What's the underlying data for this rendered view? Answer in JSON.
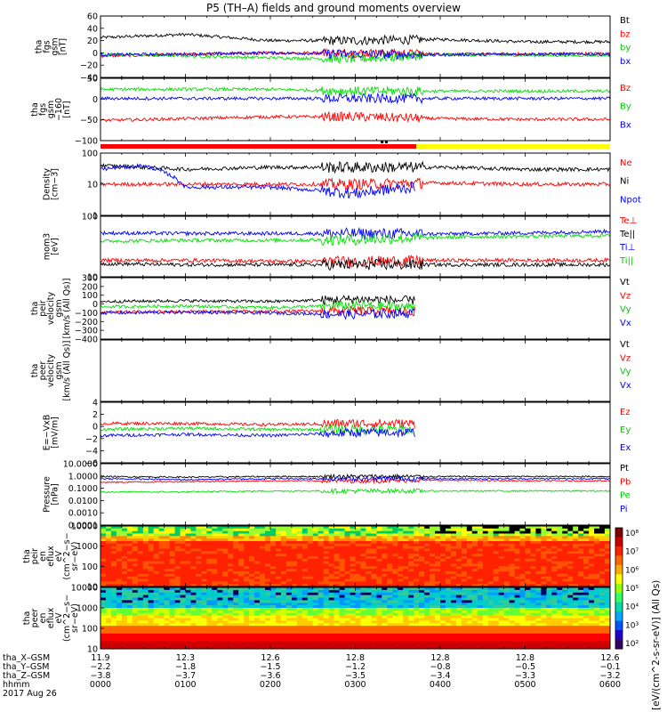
{
  "title": "P5 (TH–A) fields and ground moments overview",
  "date_label": "2017 Aug 26",
  "x_axis": {
    "row_labels": [
      "tha_X–GSM",
      "tha_Y–GSM",
      "tha_Z–GSM",
      "hhmm"
    ],
    "rows": [
      [
        "11.9",
        "12.3",
        "12.6",
        "12.8",
        "12.8",
        "12.8",
        "12.6"
      ],
      [
        "−2.2",
        "−1.8",
        "−1.5",
        "−1.2",
        "−0.8",
        "−0.5",
        "−0.1"
      ],
      [
        "−3.8",
        "−3.7",
        "−3.6",
        "−3.5",
        "−3.4",
        "−3.3",
        "−3.2"
      ],
      [
        "0000",
        "0100",
        "0200",
        "0300",
        "0400",
        "0500",
        "0600"
      ]
    ]
  },
  "colorbar": {
    "ticks": [
      "10⁸",
      "10⁷",
      "10⁶",
      "10⁵",
      "10⁴",
      "10³",
      "10²"
    ],
    "label": "[eV/(cm^2-s-sr-eV)] (All Qs)"
  },
  "chart_data": [
    {
      "id": "fgs",
      "type": "line",
      "ylabel": "tha fgs gsm [nT]",
      "ylim": [
        -40,
        60
      ],
      "yticks": [
        "60",
        "40",
        "20",
        "0",
        "−20",
        "−40"
      ],
      "legend": [
        "Bt",
        "bz",
        "by",
        "bx"
      ],
      "series": [
        {
          "name": "Bt",
          "color": "#000000",
          "time_hours": [
            0,
            1,
            2,
            3,
            4,
            5,
            6
          ],
          "values": [
            25,
            30,
            20,
            20,
            22,
            18,
            18
          ]
        },
        {
          "name": "bz",
          "color": "#ff0000",
          "time_hours": [
            0,
            1,
            2,
            3,
            4,
            5,
            6
          ],
          "values": [
            -5,
            -3,
            0,
            0,
            -2,
            -2,
            -1
          ]
        },
        {
          "name": "by",
          "color": "#00e000",
          "time_hours": [
            0,
            1,
            2,
            3,
            4,
            5,
            6
          ],
          "values": [
            -2,
            -5,
            -8,
            -10,
            -3,
            -4,
            -4
          ]
        },
        {
          "name": "bx",
          "color": "#0000ff",
          "time_hours": [
            0,
            1,
            2,
            3,
            4,
            5,
            6
          ],
          "values": [
            -3,
            -2,
            0,
            -2,
            -3,
            -2,
            -2
          ]
        }
      ]
    },
    {
      "id": "fgs_offset",
      "type": "line",
      "ylabel": "tha fgs gsm −160 [nT]",
      "ylim": [
        -120,
        50
      ],
      "yticks": [
        "50",
        "0",
        "−50",
        "−100"
      ],
      "legend": [
        "Bz",
        "By",
        "Bx"
      ],
      "series": [
        {
          "name": "Bz",
          "color": "#ff0000",
          "time_hours": [
            0,
            1,
            2,
            3,
            4,
            5,
            6
          ],
          "values": [
            -65,
            -60,
            -55,
            -55,
            -60,
            -62,
            -62
          ]
        },
        {
          "name": "By",
          "color": "#00e000",
          "time_hours": [
            0,
            1,
            2,
            3,
            4,
            5,
            6
          ],
          "values": [
            20,
            20,
            20,
            15,
            15,
            15,
            15
          ]
        },
        {
          "name": "Bx",
          "color": "#0000ff",
          "time_hours": [
            0,
            1,
            2,
            3,
            4,
            5,
            6
          ],
          "values": [
            -5,
            -5,
            -5,
            -5,
            -5,
            -5,
            -5
          ]
        }
      ]
    },
    {
      "id": "density",
      "type": "line",
      "log": true,
      "ylabel": "Density [cm^−3]",
      "ylim": [
        1,
        100
      ],
      "yticks": [
        "100",
        "10",
        "1"
      ],
      "legend": [
        "Ne",
        "Ni",
        "Npot"
      ],
      "series": [
        {
          "name": "Ne",
          "color": "#ff0000",
          "time_hours": [
            0,
            1,
            2,
            3,
            4,
            5,
            6
          ],
          "values": [
            10,
            10,
            10,
            10,
            11,
            10,
            10
          ]
        },
        {
          "name": "Ni",
          "color": "#000000",
          "time_hours": [
            0,
            1,
            2,
            3,
            4,
            5,
            6
          ],
          "values": [
            40,
            30,
            35,
            35,
            35,
            30,
            30
          ]
        },
        {
          "name": "Npot",
          "color": "#0000ff",
          "time_hours": [
            0,
            0.5,
            1,
            2,
            3,
            3.7
          ],
          "values": [
            30,
            40,
            8,
            8,
            5,
            8
          ]
        }
      ]
    },
    {
      "id": "temperature",
      "type": "line",
      "log": true,
      "ylabel": "mom3 [eV]",
      "ylim": [
        10,
        1000
      ],
      "yticks": [
        "100",
        "10"
      ],
      "legend": [
        "Te⊥",
        "Te||",
        "Ti⊥",
        "Ti||"
      ],
      "series": [
        {
          "name": "Te⊥",
          "color": "#ff0000",
          "time_hours": [
            0,
            1,
            2,
            3,
            4,
            5,
            6
          ],
          "values": [
            35,
            35,
            33,
            32,
            35,
            35,
            35
          ]
        },
        {
          "name": "Te||",
          "color": "#000000",
          "time_hours": [
            0,
            1,
            2,
            3,
            4,
            5,
            6
          ],
          "values": [
            27,
            25,
            25,
            25,
            25,
            25,
            25
          ]
        },
        {
          "name": "Ti⊥",
          "color": "#0000ff",
          "time_hours": [
            0,
            1,
            2,
            3,
            4,
            5,
            6
          ],
          "values": [
            280,
            270,
            270,
            270,
            260,
            280,
            320
          ]
        },
        {
          "name": "Ti||",
          "color": "#00e000",
          "time_hours": [
            0,
            1,
            2,
            3,
            4,
            5,
            6
          ],
          "values": [
            150,
            160,
            160,
            170,
            200,
            220,
            230
          ]
        }
      ]
    },
    {
      "id": "peir_velocity",
      "type": "line",
      "ylabel": "tha peir velocity gsm [km/s (All Qs)]",
      "ylim": [
        -400,
        400
      ],
      "yticks": [
        "300",
        "200",
        "100",
        "0",
        "−100",
        "−200",
        "−300",
        "−400"
      ],
      "legend": [
        "Vt",
        "Vz",
        "Vy",
        "Vx"
      ],
      "series": [
        {
          "name": "Vt",
          "color": "#000000",
          "time_hours": [
            0,
            1,
            2,
            3,
            3.7
          ],
          "values": [
            90,
            100,
            90,
            120,
            100
          ]
        },
        {
          "name": "Vz",
          "color": "#ff0000",
          "time_hours": [
            0,
            1,
            2,
            3,
            3.7
          ],
          "values": [
            -50,
            -40,
            -40,
            -30,
            -40
          ]
        },
        {
          "name": "Vy",
          "color": "#00e000",
          "time_hours": [
            0,
            1,
            2,
            3,
            3.7
          ],
          "values": [
            20,
            30,
            10,
            40,
            20
          ]
        },
        {
          "name": "Vx",
          "color": "#0000ff",
          "time_hours": [
            0,
            1,
            2,
            3,
            3.7
          ],
          "values": [
            -60,
            -50,
            -60,
            -80,
            -60
          ]
        }
      ]
    },
    {
      "id": "peer_velocity",
      "type": "line",
      "ylabel": "tha peer velocity gsm [km/s (All Qs)]",
      "yticks": [],
      "legend": [
        "Vt",
        "Vz",
        "Vy",
        "Vx"
      ],
      "series": []
    },
    {
      "id": "efield",
      "type": "line",
      "ylabel": "E=−VxB [mV/m]",
      "ylim": [
        -6,
        4
      ],
      "yticks": [
        "4",
        "2",
        "0",
        "−2",
        "−4",
        "−6"
      ],
      "legend": [
        "Ez",
        "Ey",
        "Ex"
      ],
      "series": [
        {
          "name": "Ez",
          "color": "#ff0000",
          "time_hours": [
            0,
            1,
            2,
            3,
            3.7
          ],
          "values": [
            0.5,
            0.5,
            0.3,
            0.5,
            0.5
          ]
        },
        {
          "name": "Ey",
          "color": "#00e000",
          "time_hours": [
            0,
            1,
            2,
            3,
            3.7
          ],
          "values": [
            -0.5,
            -0.3,
            -0.5,
            -0.5,
            -0.5
          ]
        },
        {
          "name": "Ex",
          "color": "#0000ff",
          "time_hours": [
            0,
            1,
            2,
            3,
            3.7
          ],
          "values": [
            -1.5,
            -1.3,
            -1.5,
            -1.0,
            -1.0
          ]
        }
      ]
    },
    {
      "id": "pressure",
      "type": "line",
      "log": true,
      "ylabel": "Pressure [nPa]",
      "ylim": [
        0.0001,
        10
      ],
      "yticks": [
        "10.0000",
        "1.0000",
        "0.1000",
        "0.0100",
        "0.0010",
        "0.0001"
      ],
      "legend": [
        "Pt",
        "Pb",
        "Pe",
        "Pi"
      ],
      "series": [
        {
          "name": "Pt",
          "color": "#000000",
          "time_hours": [
            0,
            1,
            2,
            3,
            4,
            5,
            6
          ],
          "values": [
            0.9,
            0.8,
            0.9,
            0.9,
            0.9,
            0.9,
            0.9
          ]
        },
        {
          "name": "Pb",
          "color": "#ff0000",
          "time_hours": [
            0,
            1,
            2,
            3,
            4,
            5,
            6
          ],
          "values": [
            0.3,
            0.35,
            0.4,
            0.4,
            0.45,
            0.4,
            0.4
          ]
        },
        {
          "name": "Pe",
          "color": "#00e000",
          "time_hours": [
            0,
            1,
            2,
            3,
            4,
            5,
            6
          ],
          "values": [
            0.05,
            0.05,
            0.06,
            0.06,
            0.06,
            0.06,
            0.06
          ]
        },
        {
          "name": "Pi",
          "color": "#0000ff",
          "time_hours": [
            0,
            1,
            2,
            3,
            4,
            5,
            6
          ],
          "values": [
            0.6,
            0.5,
            0.6,
            0.6,
            0.6,
            0.6,
            0.6
          ]
        }
      ]
    },
    {
      "id": "peir_spec",
      "type": "heatmap",
      "ylabel": "tha peir en eflux eV (cm^2−s−sr−eV)",
      "ylim": [
        10,
        10000
      ],
      "yticks": [
        "10000",
        "1000",
        "100",
        "10"
      ]
    },
    {
      "id": "peer_spec",
      "type": "heatmap",
      "ylabel": "tha peer en eflux eV (cm^2−s−sr−eV)",
      "ylim": [
        10,
        10000
      ],
      "yticks": [
        "10000",
        "1000",
        "100",
        "10"
      ]
    }
  ],
  "labels": {
    "p1": [
      "tha",
      "fgs",
      "gsm",
      "[nT]"
    ],
    "p2": [
      "tha",
      "fgs",
      "gsm",
      "−160",
      "[nT]"
    ],
    "p3": [
      "Density",
      "[cm−3]"
    ],
    "p4": [
      "mom3",
      "[eV]"
    ],
    "p5": [
      "tha",
      "peir",
      "velocity",
      "gsm",
      "[km/s (All Qs)]"
    ],
    "p6": [
      "tha",
      "peer",
      "velocity",
      "gsm",
      "[km/s (All Qs)]"
    ],
    "p7": [
      "E=−VxB",
      "[mV/m]"
    ],
    "p8": [
      "Pressure",
      "[nPa]"
    ],
    "p9": [
      "tha",
      "peir",
      "en",
      "eflux",
      "eV",
      "(cm^2−s−",
      "sr−eV)"
    ],
    "p10": [
      "tha",
      "peer",
      "en",
      "eflux",
      "eV",
      "(cm^2−s−",
      "sr−eV)"
    ]
  }
}
